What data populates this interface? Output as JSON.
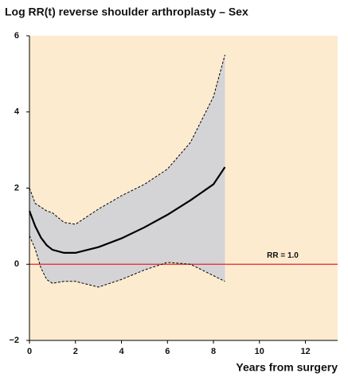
{
  "chart_data": {
    "type": "line",
    "title": "Log RR(t) reverse shoulder arthroplasty – Sex",
    "x_label": "Years from surgery",
    "x": [
      0,
      0.25,
      0.5,
      0.75,
      1,
      1.5,
      2,
      3,
      4,
      5,
      6,
      7,
      8,
      8.5
    ],
    "values": [
      1.4,
      1.0,
      0.7,
      0.5,
      0.38,
      0.3,
      0.3,
      0.45,
      0.68,
      0.97,
      1.3,
      1.68,
      2.1,
      2.55
    ],
    "upper": [
      2.0,
      1.6,
      1.5,
      1.4,
      1.35,
      1.1,
      1.05,
      1.45,
      1.8,
      2.1,
      2.5,
      3.2,
      4.4,
      5.5
    ],
    "lower": [
      0.75,
      0.4,
      -0.1,
      -0.4,
      -0.5,
      -0.45,
      -0.45,
      -0.6,
      -0.4,
      -0.15,
      0.05,
      0.0,
      -0.3,
      -0.45
    ],
    "color": "#000000",
    "band_color": "#d4d4d6",
    "background": "#fdebd0",
    "reference_line": {
      "value": 0,
      "label": "RR = 1.0",
      "color": "#e0262a"
    },
    "xlim": [
      0,
      13.4
    ],
    "xticks": [
      0,
      2,
      4,
      6,
      8,
      10,
      12
    ],
    "ylim": [
      -2,
      6
    ],
    "yticks": [
      {
        "value": -2,
        "label": "−2"
      },
      0,
      2,
      4,
      6
    ]
  }
}
